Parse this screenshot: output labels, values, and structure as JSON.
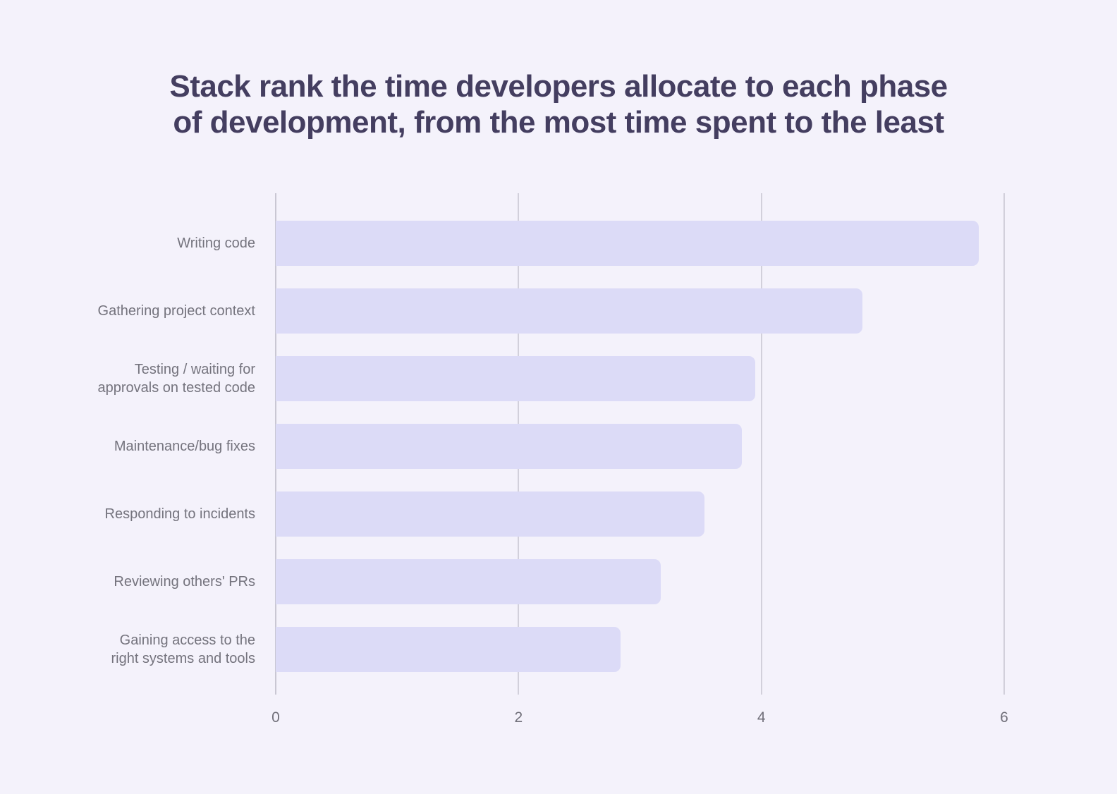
{
  "title_lines": [
    "Stack rank the time developers allocate to each phase",
    "of development, from the most time spent to the least"
  ],
  "chart_data": {
    "type": "bar",
    "orientation": "horizontal",
    "title": "Stack rank the time developers allocate to each phase of development, from the most time spent to the least",
    "categories": [
      "Writing code",
      "Gathering project context",
      "Testing / waiting for approvals on tested code",
      "Maintenance/bug fixes",
      "Responding to incidents",
      "Reviewing others' PRs",
      "Gaining access to the right systems and tools"
    ],
    "categories_display": [
      "Writing code",
      "Gathering project context",
      "Testing / waiting for\napprovals on tested code",
      "Maintenance/bug fixes",
      "Responding to incidents",
      "Reviewing others' PRs",
      "Gaining access to the\nright systems and tools"
    ],
    "values": [
      5.79,
      4.83,
      3.95,
      3.84,
      3.53,
      3.17,
      2.84
    ],
    "xlim": [
      0,
      6
    ],
    "x_ticks": [
      "0",
      "2",
      "4",
      "6"
    ],
    "x_tick_values": [
      0,
      2,
      4,
      6
    ],
    "xlabel": "",
    "ylabel": "",
    "grid": true,
    "legend": false,
    "colors": {
      "bar": "#dcdbf7",
      "background": "#f4f2fb",
      "gridline": "#d2d0db",
      "title_text": "#443e60",
      "label_text": "#74737d"
    }
  }
}
